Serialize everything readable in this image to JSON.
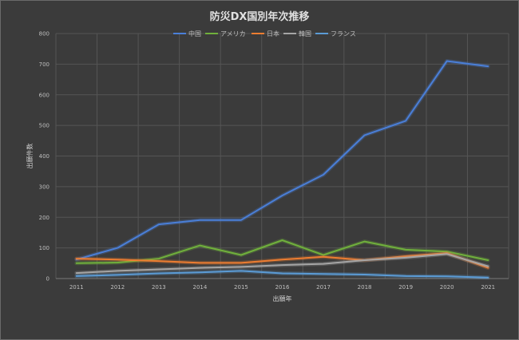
{
  "chart_data": {
    "type": "line",
    "title": "防災DX国別年次推移",
    "xlabel": "出願年",
    "ylabel": "出願件数",
    "ylim": [
      0,
      800
    ],
    "yticks": [
      0,
      100,
      200,
      300,
      400,
      500,
      600,
      700,
      800
    ],
    "x": [
      "2011",
      "2012",
      "2013",
      "2014",
      "2015",
      "2016",
      "2017",
      "2018",
      "2019",
      "2020",
      "2021"
    ],
    "legend_position": "top",
    "grid": true,
    "series": [
      {
        "name": "中国",
        "color": "#4a7fd8",
        "values": [
          62,
          100,
          177,
          191,
          191,
          271,
          339,
          468,
          515,
          710,
          693
        ]
      },
      {
        "name": "アメリカ",
        "color": "#70b03c",
        "values": [
          50,
          52,
          65,
          108,
          77,
          125,
          77,
          121,
          94,
          88,
          60
        ]
      },
      {
        "name": "日本",
        "color": "#ed7d31",
        "values": [
          65,
          62,
          57,
          51,
          51,
          62,
          71,
          60,
          73,
          83,
          35
        ]
      },
      {
        "name": "韓国",
        "color": "#a5a5a5",
        "values": [
          18,
          25,
          30,
          35,
          38,
          44,
          48,
          60,
          68,
          80,
          40
        ]
      },
      {
        "name": "フランス",
        "color": "#5b9bd5",
        "values": [
          8,
          12,
          17,
          20,
          25,
          17,
          15,
          13,
          8,
          7,
          3
        ]
      }
    ]
  }
}
